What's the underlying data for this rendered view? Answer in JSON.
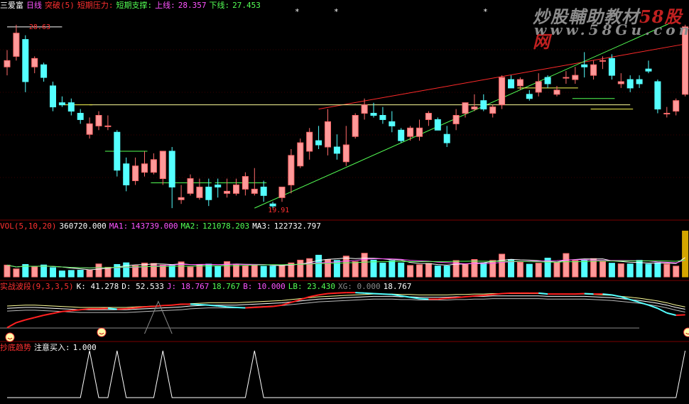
{
  "colors": {
    "up": "#ff6a6a",
    "upFill": "#ff9999",
    "down": "#54ffff",
    "white": "#ffffff",
    "yellow": "#ffff54",
    "magenta": "#ff54ff",
    "green": "#54ff54",
    "red": "#ff3030",
    "gold": "#d4a600",
    "grid": "#7a0000"
  },
  "header": {
    "title": "三爱富",
    "t1": "日线",
    "t2": "突破(5)",
    "t3": "短期压力:",
    "t4": "短期支撑:",
    "t5": "上线:",
    "v5": "28.357",
    "t6": "下线:",
    "v6": "27.453"
  },
  "watermark": {
    "main": "炒股輔助教材",
    "brand": "58股网",
    "url": "www.58Gu.com"
  },
  "vol_header": {
    "name": "VOL(5,10,20)",
    "v0": "360720.000",
    "m1": "MA1:",
    "v1": "143739.000",
    "m2": "MA2:",
    "v2": "121078.203",
    "m3": "MA3:",
    "v3": "122732.797"
  },
  "kdj_header": {
    "name": "实战波段(9,3,3,5)",
    "k": "K: 41.278",
    "d": "D: 52.533",
    "j": "J: 18.767",
    "e": "18.767",
    "b": "B: 10.000",
    "lb": "LB: 23.430",
    "xg": "XG: 0.000",
    "f": "18.767"
  },
  "sig_header": {
    "name": "抄底趋势",
    "label": "注意买入:",
    "value": "1.000"
  },
  "annotations": {
    "high": "28.63",
    "low": "19.91"
  },
  "chart_data": {
    "type": "candlestick",
    "candles": [
      [
        26.6,
        27.4,
        26.2,
        26.9
      ],
      [
        27.1,
        28.6,
        26.9,
        28.2
      ],
      [
        27.9,
        28.1,
        25.4,
        25.9
      ],
      [
        26.6,
        27.1,
        26.3,
        27.0
      ],
      [
        26.7,
        26.8,
        25.9,
        26.1
      ],
      [
        25.7,
        25.9,
        24.5,
        24.7
      ],
      [
        24.9,
        25.2,
        24.7,
        24.8
      ],
      [
        24.9,
        25.1,
        24.3,
        24.5
      ],
      [
        24.4,
        24.6,
        23.9,
        24.1
      ],
      [
        23.4,
        24.2,
        23.2,
        23.9
      ],
      [
        23.8,
        24.5,
        23.6,
        24.3
      ],
      [
        23.8,
        24.3,
        23.6,
        23.8
      ],
      [
        23.5,
        23.6,
        21.4,
        21.7
      ],
      [
        22.0,
        22.3,
        20.7,
        21.0
      ],
      [
        21.2,
        22.3,
        21.0,
        21.9
      ],
      [
        21.6,
        22.6,
        21.4,
        22.0
      ],
      [
        21.6,
        22.5,
        21.5,
        22.2
      ],
      [
        21.3,
        22.6,
        21.0,
        22.6
      ],
      [
        22.6,
        22.8,
        19.9,
        20.9
      ],
      [
        20.3,
        21.0,
        20.1,
        20.4
      ],
      [
        20.6,
        21.5,
        20.5,
        21.3
      ],
      [
        20.4,
        21.3,
        20.3,
        20.9
      ],
      [
        20.9,
        21.3,
        20.0,
        20.3
      ],
      [
        21.0,
        21.3,
        20.4,
        20.9
      ],
      [
        20.6,
        21.3,
        20.4,
        20.7
      ],
      [
        20.6,
        21.3,
        20.5,
        21.0
      ],
      [
        20.8,
        21.6,
        20.5,
        21.4
      ],
      [
        20.6,
        21.8,
        20.5,
        20.8
      ],
      [
        20.9,
        21.2,
        20.2,
        20.5
      ],
      [
        20.1,
        20.2,
        19.9,
        20.0
      ],
      [
        20.4,
        20.9,
        20.2,
        20.9
      ],
      [
        21.0,
        22.7,
        20.6,
        22.4
      ],
      [
        21.9,
        23.2,
        21.8,
        23.0
      ],
      [
        22.6,
        23.7,
        22.2,
        23.5
      ],
      [
        23.1,
        23.8,
        22.7,
        22.9
      ],
      [
        22.8,
        24.6,
        22.4,
        24.0
      ],
      [
        22.8,
        23.4,
        22.2,
        22.5
      ],
      [
        22.1,
        23.8,
        21.9,
        22.9
      ],
      [
        23.3,
        24.4,
        23.2,
        24.3
      ],
      [
        24.4,
        25.1,
        24.1,
        24.8
      ],
      [
        24.4,
        24.9,
        24.2,
        24.3
      ],
      [
        24.3,
        24.7,
        23.9,
        24.1
      ],
      [
        24.0,
        24.5,
        23.5,
        23.8
      ],
      [
        23.6,
        23.7,
        23.0,
        23.1
      ],
      [
        23.3,
        23.8,
        23.1,
        23.7
      ],
      [
        23.3,
        24.1,
        23.1,
        23.7
      ],
      [
        24.1,
        24.5,
        23.8,
        24.4
      ],
      [
        24.1,
        24.2,
        23.6,
        23.6
      ],
      [
        23.4,
        23.8,
        22.8,
        23.0
      ],
      [
        23.9,
        24.6,
        23.6,
        24.3
      ],
      [
        24.4,
        24.9,
        24.2,
        24.9
      ],
      [
        24.6,
        25.3,
        24.5,
        24.7
      ],
      [
        25.0,
        25.3,
        24.5,
        24.6
      ],
      [
        24.4,
        24.8,
        24.2,
        24.7
      ],
      [
        24.8,
        26.2,
        24.6,
        26.1
      ],
      [
        26.0,
        26.2,
        25.6,
        25.6
      ],
      [
        25.7,
        26.1,
        25.5,
        26.0
      ],
      [
        25.3,
        25.5,
        25.0,
        25.1
      ],
      [
        25.4,
        26.3,
        25.2,
        25.9
      ],
      [
        26.1,
        26.2,
        25.6,
        25.8
      ],
      [
        25.3,
        25.7,
        25.2,
        25.5
      ],
      [
        26.1,
        26.4,
        25.8,
        26.1
      ],
      [
        26.0,
        26.6,
        25.8,
        26.2
      ],
      [
        26.7,
        27.3,
        26.1,
        26.6
      ],
      [
        26.2,
        26.9,
        26.0,
        26.7
      ],
      [
        26.9,
        27.1,
        26.5,
        26.9
      ],
      [
        27.0,
        27.2,
        26.0,
        26.2
      ],
      [
        25.8,
        26.3,
        25.6,
        25.9
      ],
      [
        26.0,
        26.2,
        25.4,
        25.6
      ],
      [
        26.0,
        26.2,
        25.6,
        25.8
      ],
      [
        26.5,
        26.9,
        26.3,
        26.4
      ],
      [
        25.9,
        26.0,
        24.4,
        24.6
      ],
      [
        24.4,
        24.7,
        24.2,
        24.4
      ],
      [
        24.5,
        25.1,
        24.3,
        25.0
      ],
      [
        25.3,
        28.6,
        25.2,
        28.5
      ]
    ],
    "volumes": [
      0.93,
      0.63,
      0.98,
      0.79,
      0.94,
      0.73,
      0.47,
      0.51,
      0.53,
      0.55,
      1.02,
      0.76,
      0.98,
      1.11,
      0.88,
      1.09,
      1.06,
      0.93,
      0.89,
      1.18,
      0.78,
      0.98,
      1.01,
      0.85,
      1.2,
      1.01,
      0.88,
      0.97,
      0.84,
      0.85,
      0.93,
      1.1,
      1.32,
      1.44,
      1.71,
      1.36,
      1.3,
      1.64,
      1.2,
      1.86,
      1.32,
      1.09,
      1.27,
      1.1,
      0.9,
      0.96,
      1.05,
      0.86,
      0.86,
      1.29,
      0.99,
      1.37,
      1.09,
      1.3,
      1.79,
      1.37,
      1.15,
      1.0,
      1.08,
      1.48,
      1.17,
      1.84,
      1.28,
      1.32,
      1.44,
      1.21,
      1.08,
      1.03,
      1.02,
      1.31,
      1.01,
      1.11,
      1.01,
      0.85,
      3.61
    ],
    "price_range": [
      19.5,
      29.1
    ],
    "volume_max": 3.8,
    "lines": {
      "k": [
        13,
        24,
        30,
        35,
        40,
        44,
        48,
        50,
        52,
        54,
        54,
        55,
        53,
        54,
        56,
        58,
        59,
        61,
        62,
        64,
        64,
        63,
        62,
        60,
        58,
        57,
        56,
        57,
        58,
        59,
        62,
        68,
        74,
        80,
        84,
        87,
        88,
        89,
        89,
        88,
        87,
        86,
        85,
        82,
        79,
        76,
        75,
        75,
        77,
        78,
        80,
        82,
        83,
        85,
        87,
        88,
        88,
        88,
        88,
        86,
        86,
        86,
        86,
        87,
        86,
        86,
        84,
        80,
        74,
        68,
        62,
        55,
        45,
        40,
        41
      ],
      "d": [
        55,
        56,
        57,
        57,
        56,
        55,
        54,
        53,
        52,
        52,
        52,
        52,
        52,
        52,
        53,
        54,
        55,
        56,
        57,
        58,
        60,
        61,
        62,
        62,
        62,
        62,
        63,
        64,
        65,
        66,
        67,
        69,
        71,
        73,
        75,
        76,
        77,
        78,
        79,
        80,
        81,
        81,
        81,
        80,
        80,
        79,
        79,
        79,
        79,
        80,
        80,
        81,
        81,
        82,
        82,
        82,
        82,
        82,
        82,
        81,
        81,
        81,
        81,
        81,
        80,
        79,
        78,
        76,
        74,
        72,
        69,
        66,
        62,
        57,
        53
      ]
    },
    "signal": [
      0,
      0,
      0,
      0,
      0,
      0,
      0,
      0,
      0,
      1,
      0,
      0,
      1,
      0,
      0,
      0,
      0,
      1,
      0,
      0,
      0,
      0,
      0,
      0,
      0,
      0,
      0,
      1,
      0,
      0,
      0,
      0,
      0,
      0,
      0,
      0,
      0,
      0,
      0,
      0,
      0,
      0,
      0,
      0,
      0,
      0,
      0,
      0,
      0,
      0,
      0,
      0,
      0,
      0,
      0,
      0,
      0,
      0,
      0,
      0,
      0,
      0,
      0,
      0,
      0,
      0,
      0,
      0,
      0,
      0,
      0,
      0,
      0,
      0,
      1
    ]
  }
}
